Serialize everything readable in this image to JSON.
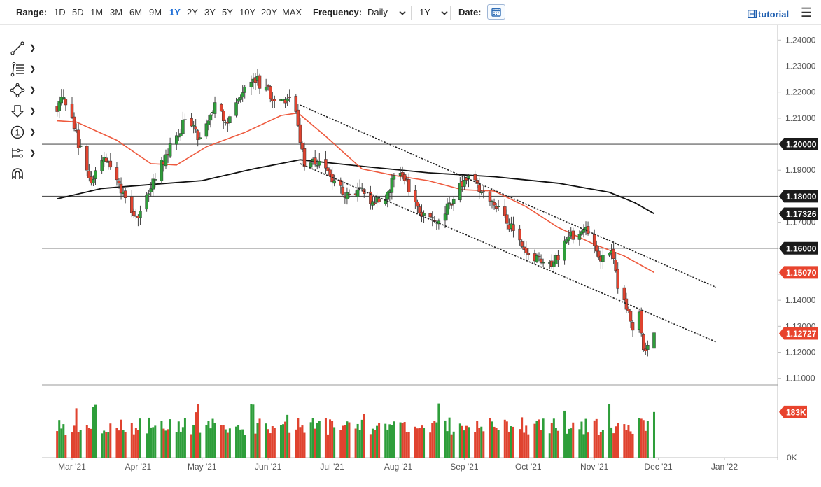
{
  "toolbar": {
    "range_label": "Range:",
    "ranges": [
      "1D",
      "5D",
      "1M",
      "3M",
      "6M",
      "9M",
      "1Y",
      "2Y",
      "3Y",
      "5Y",
      "10Y",
      "20Y",
      "MAX"
    ],
    "active_range": "1Y",
    "frequency_label": "Frequency:",
    "frequency_value": "Daily",
    "period_value": "1Y",
    "date_label": "Date:",
    "tutorial_label": "tutorial",
    "icons": [
      "calendar-icon",
      "tutorial-icon",
      "menu-icon",
      "chevron-down-icon"
    ]
  },
  "tools": [
    {
      "name": "trendline-tool",
      "icon": "trendline-icon"
    },
    {
      "name": "fibonacci-tool",
      "icon": "fibonacci-icon"
    },
    {
      "name": "shapes-tool",
      "icon": "shapes-icon"
    },
    {
      "name": "arrow-tool",
      "icon": "arrow-down-icon"
    },
    {
      "name": "annotation-tool",
      "icon": "number-one-icon",
      "label": "1"
    },
    {
      "name": "indicator-tool",
      "icon": "indicator-icon"
    },
    {
      "name": "magnet-tool",
      "icon": "magnet-icon"
    }
  ],
  "colors": {
    "up": "#2e9e3a",
    "down": "#e0432f",
    "ma_fast": "#ee5a3e",
    "ma_slow": "#111111",
    "trend": "#222222"
  },
  "chart_data": {
    "type": "candlestick",
    "y_ticks": [
      "1.24000",
      "1.23000",
      "1.22000",
      "1.21000",
      "1.20000",
      "1.19000",
      "1.18000",
      "1.17000",
      "1.16000",
      "1.15000",
      "1.14000",
      "1.13000",
      "1.12000",
      "1.11000"
    ],
    "ylim": [
      1.1075,
      1.2425
    ],
    "x_labels": [
      {
        "label": "Mar '21",
        "date": "2021-03-01"
      },
      {
        "label": "Apr '21",
        "date": "2021-04-01"
      },
      {
        "label": "May '21",
        "date": "2021-05-01"
      },
      {
        "label": "Jun '21",
        "date": "2021-06-01"
      },
      {
        "label": "Jul '21",
        "date": "2021-07-01"
      },
      {
        "label": "Aug '21",
        "date": "2021-08-01"
      },
      {
        "label": "Sep '21",
        "date": "2021-09-01"
      },
      {
        "label": "Oct '21",
        "date": "2021-10-01"
      },
      {
        "label": "Nov '21",
        "date": "2021-11-01"
      },
      {
        "label": "Dec '21",
        "date": "2021-12-01"
      },
      {
        "label": "Jan '22",
        "date": "2022-01-01"
      }
    ],
    "price_tags": [
      {
        "value": "1.20000",
        "style": "dark",
        "y": 1.2
      },
      {
        "value": "1.18000",
        "style": "dark",
        "y": 1.18
      },
      {
        "value": "1.17326",
        "style": "dark",
        "y": 1.17326
      },
      {
        "value": "1.16000",
        "style": "dark",
        "y": 1.16
      },
      {
        "value": "1.15070",
        "style": "red",
        "y": 1.1507
      },
      {
        "value": "1.12727",
        "style": "red",
        "y": 1.12727
      }
    ],
    "horizontal_lines": [
      1.2,
      1.18,
      1.16
    ],
    "volume_ticks": [
      "0K"
    ],
    "volume_tag": "183K",
    "volume_max": 250,
    "last_volume": 183,
    "trendlines": [
      {
        "from": [
          "2021-06-16",
          1.215
        ],
        "to": [
          "2021-12-28",
          1.145
        ]
      },
      {
        "from": [
          "2021-06-16",
          1.1925
        ],
        "to": [
          "2021-12-28",
          1.124
        ]
      }
    ],
    "key_points": [
      {
        "date": "2021-02-22",
        "close": 1.2125
      },
      {
        "date": "2021-02-25",
        "close": 1.218
      },
      {
        "date": "2021-03-02",
        "close": 1.206
      },
      {
        "date": "2021-03-08",
        "close": 1.19
      },
      {
        "date": "2021-03-10",
        "close": 1.185
      },
      {
        "date": "2021-03-16",
        "close": 1.195
      },
      {
        "date": "2021-03-23",
        "close": 1.185
      },
      {
        "date": "2021-03-31",
        "close": 1.1725
      },
      {
        "date": "2021-04-06",
        "close": 1.181
      },
      {
        "date": "2021-04-14",
        "close": 1.196
      },
      {
        "date": "2021-04-20",
        "close": 1.203
      },
      {
        "date": "2021-04-23",
        "close": 1.2095
      },
      {
        "date": "2021-04-30",
        "close": 1.2025
      },
      {
        "date": "2021-05-07",
        "close": 1.216
      },
      {
        "date": "2021-05-13",
        "close": 1.208
      },
      {
        "date": "2021-05-19",
        "close": 1.218
      },
      {
        "date": "2021-05-25",
        "close": 1.225
      },
      {
        "date": "2021-05-31",
        "close": 1.222
      },
      {
        "date": "2021-06-04",
        "close": 1.2165
      },
      {
        "date": "2021-06-10",
        "close": 1.2175
      },
      {
        "date": "2021-06-14",
        "close": 1.2125
      },
      {
        "date": "2021-06-18",
        "close": 1.1915
      },
      {
        "date": "2021-06-25",
        "close": 1.1935
      },
      {
        "date": "2021-07-07",
        "close": 1.1795
      },
      {
        "date": "2021-07-13",
        "close": 1.1825
      },
      {
        "date": "2021-07-20",
        "close": 1.178
      },
      {
        "date": "2021-07-27",
        "close": 1.1815
      },
      {
        "date": "2021-07-30",
        "close": 1.188
      },
      {
        "date": "2021-08-04",
        "close": 1.186
      },
      {
        "date": "2021-08-11",
        "close": 1.1735
      },
      {
        "date": "2021-08-20",
        "close": 1.1705
      },
      {
        "date": "2021-08-25",
        "close": 1.1775
      },
      {
        "date": "2021-09-03",
        "close": 1.188
      },
      {
        "date": "2021-09-10",
        "close": 1.1815
      },
      {
        "date": "2021-09-20",
        "close": 1.1725
      },
      {
        "date": "2021-09-29",
        "close": 1.1595
      },
      {
        "date": "2021-10-06",
        "close": 1.1565
      },
      {
        "date": "2021-10-12",
        "close": 1.153
      },
      {
        "date": "2021-10-20",
        "close": 1.1645
      },
      {
        "date": "2021-10-28",
        "close": 1.168
      },
      {
        "date": "2021-11-04",
        "close": 1.155
      },
      {
        "date": "2021-11-09",
        "close": 1.159
      },
      {
        "date": "2021-11-12",
        "close": 1.1445
      },
      {
        "date": "2021-11-16",
        "close": 1.1365
      },
      {
        "date": "2021-11-19",
        "close": 1.1285
      },
      {
        "date": "2021-11-22",
        "close": 1.1355
      },
      {
        "date": "2021-11-24",
        "close": 1.121
      },
      {
        "date": "2021-11-25",
        "close": 1.1205
      },
      {
        "date": "2021-11-29",
        "close": 1.1275
      }
    ],
    "ma_fast": [
      {
        "date": "2021-02-22",
        "value": 1.209
      },
      {
        "date": "2021-03-03",
        "value": 1.2085
      },
      {
        "date": "2021-03-22",
        "value": 1.2015
      },
      {
        "date": "2021-04-07",
        "value": 1.1925
      },
      {
        "date": "2021-04-19",
        "value": 1.192
      },
      {
        "date": "2021-05-03",
        "value": 1.199
      },
      {
        "date": "2021-05-21",
        "value": 1.2045
      },
      {
        "date": "2021-06-07",
        "value": 1.211
      },
      {
        "date": "2021-06-15",
        "value": 1.212
      },
      {
        "date": "2021-06-28",
        "value": 1.203
      },
      {
        "date": "2021-07-15",
        "value": 1.1905
      },
      {
        "date": "2021-07-30",
        "value": 1.188
      },
      {
        "date": "2021-08-15",
        "value": 1.186
      },
      {
        "date": "2021-08-31",
        "value": 1.1825
      },
      {
        "date": "2021-09-15",
        "value": 1.182
      },
      {
        "date": "2021-09-30",
        "value": 1.176
      },
      {
        "date": "2021-10-15",
        "value": 1.168
      },
      {
        "date": "2021-11-01",
        "value": 1.1615
      },
      {
        "date": "2021-11-15",
        "value": 1.157
      },
      {
        "date": "2021-11-29",
        "value": 1.1507
      }
    ],
    "ma_slow": [
      {
        "date": "2021-02-22",
        "value": 1.179
      },
      {
        "date": "2021-03-15",
        "value": 1.183
      },
      {
        "date": "2021-04-07",
        "value": 1.1845
      },
      {
        "date": "2021-05-01",
        "value": 1.186
      },
      {
        "date": "2021-05-25",
        "value": 1.1905
      },
      {
        "date": "2021-06-16",
        "value": 1.194
      },
      {
        "date": "2021-07-15",
        "value": 1.1915
      },
      {
        "date": "2021-08-15",
        "value": 1.189
      },
      {
        "date": "2021-09-15",
        "value": 1.1875
      },
      {
        "date": "2021-10-15",
        "value": 1.185
      },
      {
        "date": "2021-11-08",
        "value": 1.1815
      },
      {
        "date": "2021-11-20",
        "value": 1.1775
      },
      {
        "date": "2021-11-29",
        "value": 1.1733
      }
    ]
  }
}
